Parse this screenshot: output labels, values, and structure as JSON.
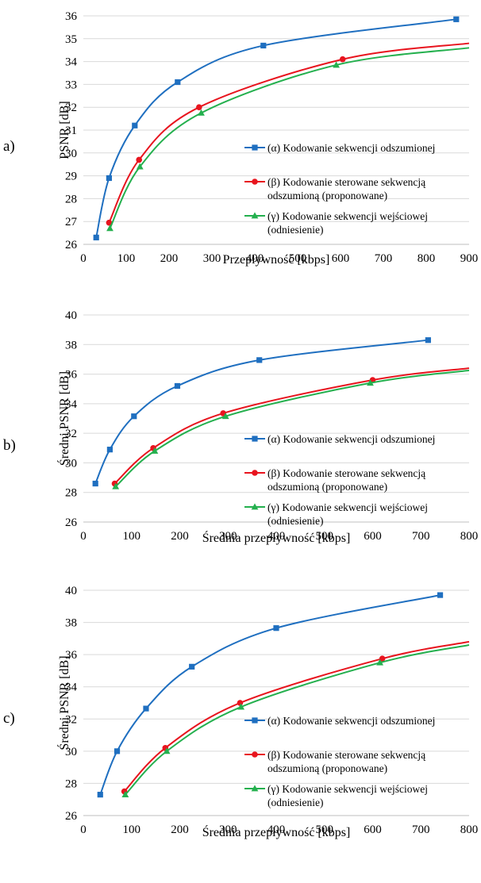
{
  "colors": {
    "alpha": "#1f6fc0",
    "beta": "#e8141e",
    "gamma": "#24b04e",
    "grid": "#d9d9d9"
  },
  "legend_labels": [
    [
      "(α) Kodowanie sekwencji odszumionej"
    ],
    [
      "(β) Kodowanie sterowane sekwencją",
      "odszumioną (proponowane)"
    ],
    [
      "(γ) Kodowanie sekwencji wejściowej",
      "(odniesienie)"
    ]
  ],
  "chart_data": [
    {
      "type": "line",
      "panel_label": "a)",
      "xlabel": "Przepływność [kbps]",
      "ylabel": "PSNR [dB]",
      "xlim": [
        0,
        900
      ],
      "xticks": [
        0,
        100,
        200,
        300,
        400,
        500,
        600,
        700,
        800,
        900
      ],
      "ylim": [
        26,
        36
      ],
      "yticks": [
        26,
        27,
        28,
        29,
        30,
        31,
        32,
        33,
        34,
        35,
        36
      ],
      "grid": "horizontal",
      "legend_position": "right",
      "series": [
        {
          "name": "(α) Kodowanie sekwencji odszumionej",
          "marker": "square",
          "x": [
            30,
            60,
            120,
            220,
            420,
            870
          ],
          "y": [
            26.3,
            28.9,
            31.2,
            33.1,
            34.7,
            35.85
          ]
        },
        {
          "name": "(β) Kodowanie sterowane sekwencją odszumioną (proponowane)",
          "marker": "circle",
          "x": [
            60,
            130,
            270,
            605
          ],
          "y": [
            26.95,
            29.7,
            32.0,
            34.1
          ],
          "end": [
            900,
            34.8
          ]
        },
        {
          "name": "(γ) Kodowanie sekwencji wejściowej (odniesienie)",
          "marker": "triangle",
          "x": [
            62,
            132,
            275,
            590
          ],
          "y": [
            26.7,
            29.4,
            31.75,
            33.85
          ],
          "end": [
            900,
            34.6
          ]
        }
      ]
    },
    {
      "type": "line",
      "panel_label": "b)",
      "xlabel": "Średnia przepływność [kbps]",
      "ylabel": "Średni PSNR [dB]",
      "xlim": [
        0,
        800
      ],
      "xticks": [
        0,
        100,
        200,
        300,
        400,
        500,
        600,
        700,
        800
      ],
      "ylim": [
        26,
        40
      ],
      "yticks": [
        26,
        28,
        30,
        32,
        34,
        36,
        38,
        40
      ],
      "grid": "horizontal",
      "legend_position": "right",
      "series": [
        {
          "name": "(α) Kodowanie sekwencji odszumionej",
          "marker": "square",
          "x": [
            25,
            55,
            105,
            195,
            365,
            715
          ],
          "y": [
            28.6,
            30.9,
            33.15,
            35.2,
            36.95,
            38.3
          ]
        },
        {
          "name": "(β) Kodowanie sterowane sekwencją odszumioną (proponowane)",
          "marker": "circle",
          "x": [
            65,
            145,
            290,
            600
          ],
          "y": [
            28.6,
            31.0,
            33.35,
            35.6
          ],
          "end": [
            800,
            36.4
          ]
        },
        {
          "name": "(γ) Kodowanie sekwencji wejściowej (odniesienie)",
          "marker": "triangle",
          "x": [
            67,
            148,
            295,
            595
          ],
          "y": [
            28.4,
            30.8,
            33.15,
            35.4
          ],
          "end": [
            800,
            36.25
          ]
        }
      ]
    },
    {
      "type": "line",
      "panel_label": "c)",
      "xlabel": "Średnia przepływność [kbps]",
      "ylabel": "Średni PSNR [dB]",
      "xlim": [
        0,
        800
      ],
      "xticks": [
        0,
        100,
        200,
        300,
        400,
        500,
        600,
        700,
        800
      ],
      "ylim": [
        26,
        40
      ],
      "yticks": [
        26,
        28,
        30,
        32,
        34,
        36,
        38,
        40
      ],
      "grid": "horizontal",
      "legend_position": "right",
      "series": [
        {
          "name": "(α) Kodowanie sekwencji odszumionej",
          "marker": "square",
          "x": [
            35,
            70,
            130,
            225,
            400,
            740
          ],
          "y": [
            27.3,
            30.0,
            32.65,
            35.25,
            37.65,
            39.7
          ]
        },
        {
          "name": "(β) Kodowanie sterowane sekwencją odszumioną (proponowane)",
          "marker": "circle",
          "x": [
            85,
            170,
            325,
            620
          ],
          "y": [
            27.5,
            30.2,
            33.0,
            35.75
          ],
          "end": [
            800,
            36.8
          ]
        },
        {
          "name": "(γ) Kodowanie sekwencji wejściowej (odniesienie)",
          "marker": "triangle",
          "x": [
            87,
            173,
            327,
            615
          ],
          "y": [
            27.3,
            30.0,
            32.75,
            35.5
          ],
          "end": [
            800,
            36.6
          ]
        }
      ]
    }
  ]
}
